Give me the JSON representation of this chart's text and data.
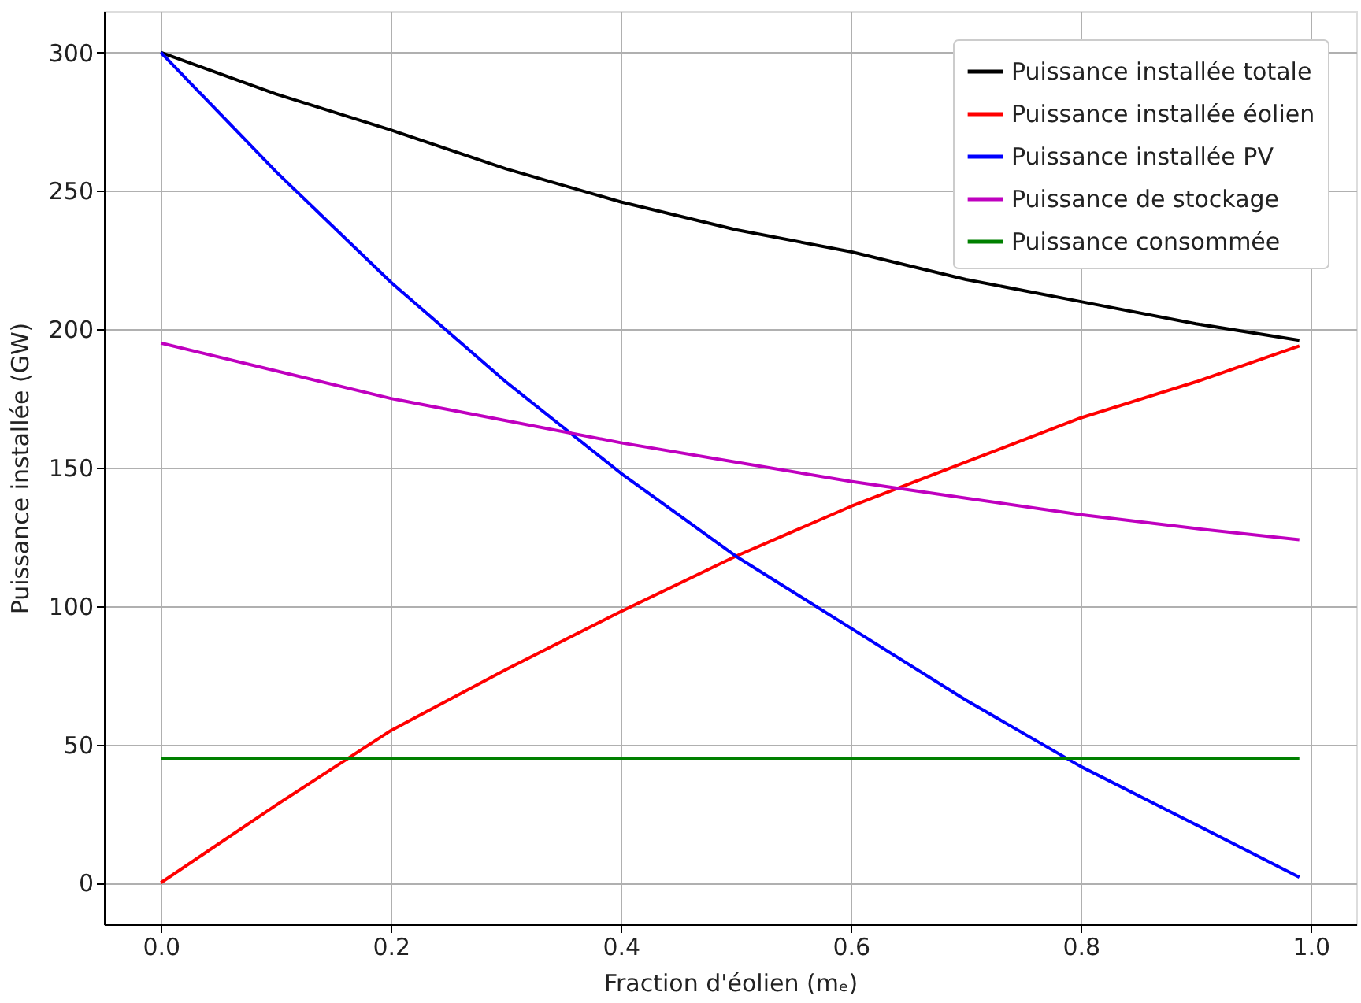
{
  "chart_data": {
    "type": "line",
    "xlabel": "Fraction d'éolien (mₑ)",
    "ylabel": "Puissance installée (GW)",
    "x": [
      0,
      0.1,
      0.2,
      0.3,
      0.4,
      0.5,
      0.6,
      0.7,
      0.8,
      0.9,
      0.99
    ],
    "series": [
      {
        "name": "Puissance installée totale",
        "color": "#000000",
        "values": [
          300,
          285,
          272,
          258,
          246,
          236,
          228,
          218,
          210,
          202,
          196
        ]
      },
      {
        "name": "Puissance installée éolien",
        "color": "#ff0000",
        "values": [
          0,
          28,
          55,
          77,
          98,
          118,
          136,
          152,
          168,
          181,
          194
        ]
      },
      {
        "name": "Puissance installée PV",
        "color": "#0000ff",
        "values": [
          300,
          257,
          217,
          181,
          148,
          118,
          92,
          66,
          42,
          21,
          2
        ]
      },
      {
        "name": "Puissance de stockage",
        "color": "#bf00bf",
        "values": [
          195,
          185,
          175,
          167,
          159,
          152,
          145,
          139,
          133,
          128,
          124
        ]
      },
      {
        "name": "Puissance consommée",
        "color": "#008000",
        "values": [
          45,
          45,
          45,
          45,
          45,
          45,
          45,
          45,
          45,
          45,
          45
        ]
      }
    ],
    "xlim": [
      -0.0495,
      1.0395
    ],
    "xticks": [
      {
        "value": 0,
        "label": "0.0"
      },
      0.2,
      0.4,
      0.6,
      0.8,
      {
        "value": 1,
        "label": "1.0"
      }
    ],
    "ylim": [
      -15,
      315
    ],
    "yticks": [
      0,
      50,
      100,
      150,
      200,
      250,
      300
    ],
    "grid": true,
    "legend": "top right",
    "marker": "none",
    "line_style": "solid"
  }
}
